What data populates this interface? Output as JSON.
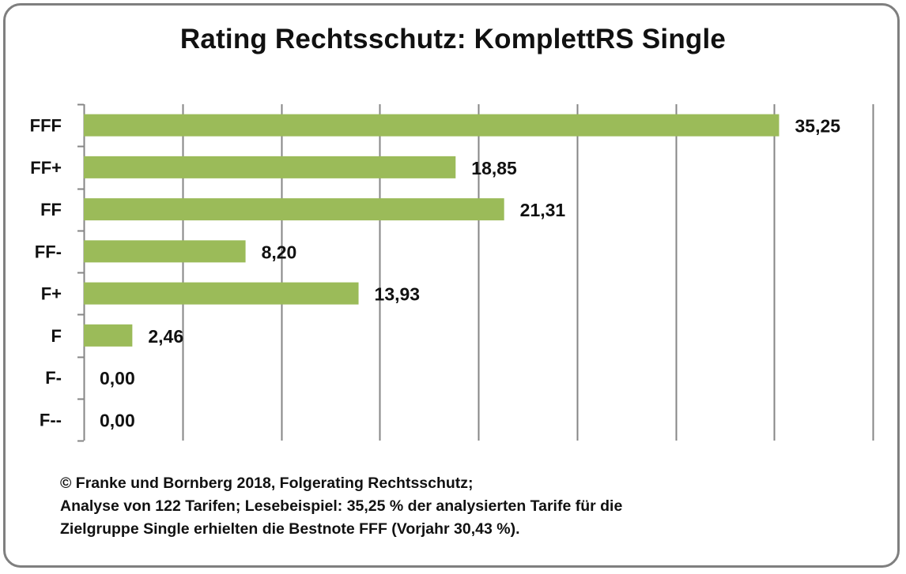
{
  "chart_data": {
    "type": "bar",
    "orientation": "horizontal",
    "title": "Rating Rechtsschutz: KomplettRS Single",
    "categories": [
      "FFF",
      "FF+",
      "FF",
      "FF-",
      "F+",
      "F",
      "F-",
      "F--"
    ],
    "values": [
      35.25,
      18.85,
      21.31,
      8.2,
      13.93,
      2.46,
      0.0,
      0.0
    ],
    "value_labels": [
      "35,25",
      "18,85",
      "21,31",
      "8,20",
      "13,93",
      "2,46",
      "0,00",
      "0,00"
    ],
    "xlim": [
      0,
      40
    ],
    "x_gridlines": [
      0,
      5,
      10,
      15,
      20,
      25,
      30,
      35,
      40
    ],
    "grid": true,
    "xlabel": "",
    "ylabel": "",
    "bar_color": "#9bbb59",
    "grid_color": "#868686"
  },
  "caption": {
    "lines": [
      "© Franke und Bornberg 2018, Folgerating Rechtsschutz;",
      "Analyse von 122 Tarifen; Lesebeispiel: 35,25 % der analysierten Tarife für die",
      "Zielgruppe Single erhielten die Bestnote FFF (Vorjahr 30,43 %)."
    ]
  }
}
